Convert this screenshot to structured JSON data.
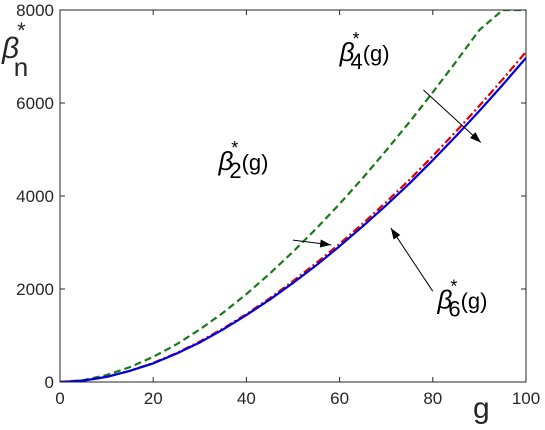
{
  "chart_data": {
    "type": "line",
    "xlim": [
      0,
      100
    ],
    "ylim": [
      0,
      8000
    ],
    "x_ticks": [
      "0",
      "20",
      "40",
      "60",
      "80",
      "100"
    ],
    "y_ticks": [
      "0",
      "2000",
      "4000",
      "6000",
      "8000"
    ],
    "x_tick_values": [
      0,
      20,
      40,
      60,
      80,
      100
    ],
    "y_tick_values": [
      0,
      2000,
      4000,
      6000,
      8000
    ],
    "xlabel": "g",
    "ylabel": {
      "main": "β",
      "sup": "*",
      "sub": "n"
    },
    "grid": false,
    "legend": "none",
    "x": [
      0,
      5,
      10,
      15,
      20,
      25,
      30,
      35,
      40,
      45,
      50,
      55,
      60,
      65,
      70,
      75,
      80,
      85,
      90,
      95,
      100
    ],
    "series": [
      {
        "key": "beta2",
        "color": "#1a7a1a",
        "style": "dashed",
        "values": [
          0,
          40,
          150,
          320,
          540,
          810,
          1130,
          1490,
          1890,
          2330,
          2800,
          3300,
          3830,
          4390,
          4980,
          5590,
          6230,
          6890,
          7570,
          8000,
          8000
        ]
      },
      {
        "key": "beta4",
        "color": "#e00000",
        "style": "dashdot",
        "values": [
          0,
          30,
          110,
          240,
          410,
          620,
          870,
          1150,
          1460,
          1800,
          2170,
          2560,
          2970,
          3410,
          3870,
          4350,
          4860,
          5390,
          5940,
          6510,
          7100
        ]
      },
      {
        "key": "beta6",
        "color": "#0000dd",
        "style": "solid",
        "values": [
          0,
          30,
          110,
          240,
          400,
          610,
          850,
          1130,
          1440,
          1770,
          2130,
          2510,
          2920,
          3350,
          3800,
          4270,
          4770,
          5290,
          5830,
          6390,
          6970
        ]
      }
    ],
    "annotations": [
      {
        "key": "beta4",
        "main": "β",
        "sup": "*",
        "sub": "4",
        "suffix": "(g)",
        "text_x": 60,
        "text_y": 6900,
        "arrow_from": [
          78,
          6280
        ],
        "arrow_to": [
          90.3,
          5150
        ]
      },
      {
        "key": "beta2",
        "main": "β",
        "sup": "*",
        "sub": "2",
        "suffix": "(g)",
        "text_x": 34,
        "text_y": 4560,
        "arrow_from": [
          50,
          3050
        ],
        "arrow_to": [
          58.2,
          2950
        ]
      },
      {
        "key": "beta6",
        "main": "β",
        "sup": "*",
        "sub": "6",
        "suffix": "(g)",
        "text_x": 81,
        "text_y": 1580,
        "arrow_from": [
          80,
          1950
        ],
        "arrow_to": [
          71,
          3310
        ]
      }
    ]
  }
}
